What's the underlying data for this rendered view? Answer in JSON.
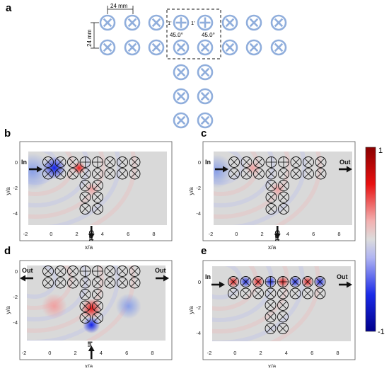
{
  "panel_a": {
    "label": "a",
    "dim_horizontal": "24 mm",
    "dim_vertical": "24 mm",
    "angle_left": "45.0°",
    "angle_right": "45.0°",
    "mark_left": "1'",
    "mark_right": "1'",
    "unit_color": "#90aedc"
  },
  "panels": [
    {
      "id": "b",
      "label": "b",
      "ylabel": "y/a",
      "xlabel": "x/a",
      "xticks": [
        "-2",
        "0",
        "2",
        "4",
        "6",
        "8"
      ],
      "yticks": [
        "0",
        "-2",
        "-4"
      ],
      "ports": [
        {
          "text": "In",
          "dir": "right"
        },
        {
          "text": "Out",
          "dir": "down"
        }
      ]
    },
    {
      "id": "c",
      "label": "c",
      "ylabel": "y/a",
      "xlabel": "x/a",
      "xticks": [
        "-2",
        "0",
        "2",
        "4",
        "6",
        "8"
      ],
      "yticks": [
        "0",
        "-2",
        "-4"
      ],
      "ports": [
        {
          "text": "In",
          "dir": "right"
        },
        {
          "text": "Out",
          "dir": "right"
        },
        {
          "text": "Out",
          "dir": "down"
        }
      ]
    },
    {
      "id": "d",
      "label": "d",
      "ylabel": "y/a",
      "xlabel": "x/a",
      "xticks": [
        "-2",
        "0",
        "2",
        "4",
        "6",
        "8"
      ],
      "yticks": [
        "0",
        "-2",
        "-4"
      ],
      "ports": [
        {
          "text": "Out",
          "dir": "left"
        },
        {
          "text": "Out",
          "dir": "right"
        },
        {
          "text": "In",
          "dir": "up"
        }
      ]
    },
    {
      "id": "e",
      "label": "e",
      "ylabel": "y/a",
      "xlabel": "x/a",
      "xticks": [
        "-2",
        "0",
        "2",
        "4",
        "6",
        "8"
      ],
      "yticks": [
        "0",
        "-2",
        "-4"
      ],
      "ports": [
        {
          "text": "In",
          "dir": "right"
        },
        {
          "text": "Out",
          "dir": "right"
        }
      ]
    }
  ],
  "colorbar": {
    "max_label": "1",
    "min_label": "-1",
    "colors": [
      "#e81010",
      "#f08080",
      "#d8d8d8",
      "#8080f0",
      "#101ee8"
    ]
  }
}
